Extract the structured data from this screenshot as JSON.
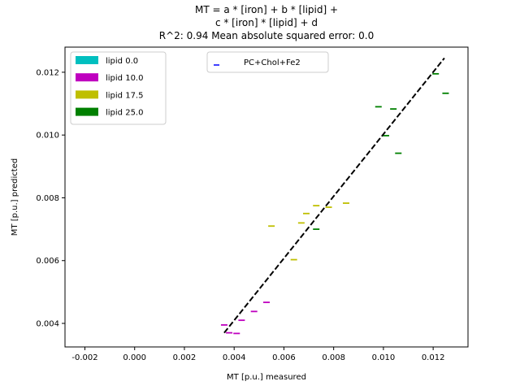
{
  "chart_data": {
    "type": "scatter",
    "title_lines": [
      "MT = a * [iron] + b * [lipid] +",
      "c * [iron] * [lipid]  + d",
      "R^2: 0.94 Mean absolute squared error: 0.0"
    ],
    "xlabel": "MT [p.u.] measured",
    "ylabel": "MT [p.u.] predicted",
    "xlim": [
      -0.0028,
      0.0134
    ],
    "ylim": [
      0.00325,
      0.0128
    ],
    "xticks": [
      "-0.002",
      "0.000",
      "0.002",
      "0.004",
      "0.006",
      "0.008",
      "0.010",
      "0.012"
    ],
    "yticks": [
      "0.004",
      "0.006",
      "0.008",
      "0.010",
      "0.012"
    ],
    "fit_line": {
      "x": [
        0.0036,
        0.01245
      ],
      "y": [
        0.0037,
        0.01245
      ],
      "color": "#000000",
      "style": "dashed"
    },
    "series": [
      {
        "name": "lipid 0.0",
        "color": "#00bfbf",
        "x": [],
        "y": []
      },
      {
        "name": "lipid 10.0",
        "color": "#bf00bf",
        "x": [
          0.0036,
          0.0038,
          0.0041,
          0.0043,
          0.0048,
          0.0053
        ],
        "y": [
          0.00395,
          0.0037,
          0.00368,
          0.0041,
          0.00438,
          0.00467
        ]
      },
      {
        "name": "lipid 17.5",
        "color": "#bfbf00",
        "x": [
          0.0055,
          0.0064,
          0.0067,
          0.0069,
          0.0073,
          0.0078,
          0.0085
        ],
        "y": [
          0.0071,
          0.00603,
          0.0072,
          0.0075,
          0.00775,
          0.0077,
          0.00783
        ]
      },
      {
        "name": "lipid 25.0",
        "color": "#008000",
        "x": [
          0.0073,
          0.0098,
          0.0101,
          0.0104,
          0.0106,
          0.0121,
          0.0125
        ],
        "y": [
          0.007,
          0.0109,
          0.00998,
          0.01083,
          0.00942,
          0.01195,
          0.01133
        ]
      }
    ],
    "legend_series": {
      "location": "upper-left",
      "labels": [
        "lipid 0.0",
        "lipid 10.0",
        "lipid 17.5",
        "lipid 25.0"
      ]
    },
    "legend_marker": {
      "location": "upper-center",
      "label": "PC+Chol+Fe2",
      "color": "#0000ff"
    },
    "grid": false
  }
}
